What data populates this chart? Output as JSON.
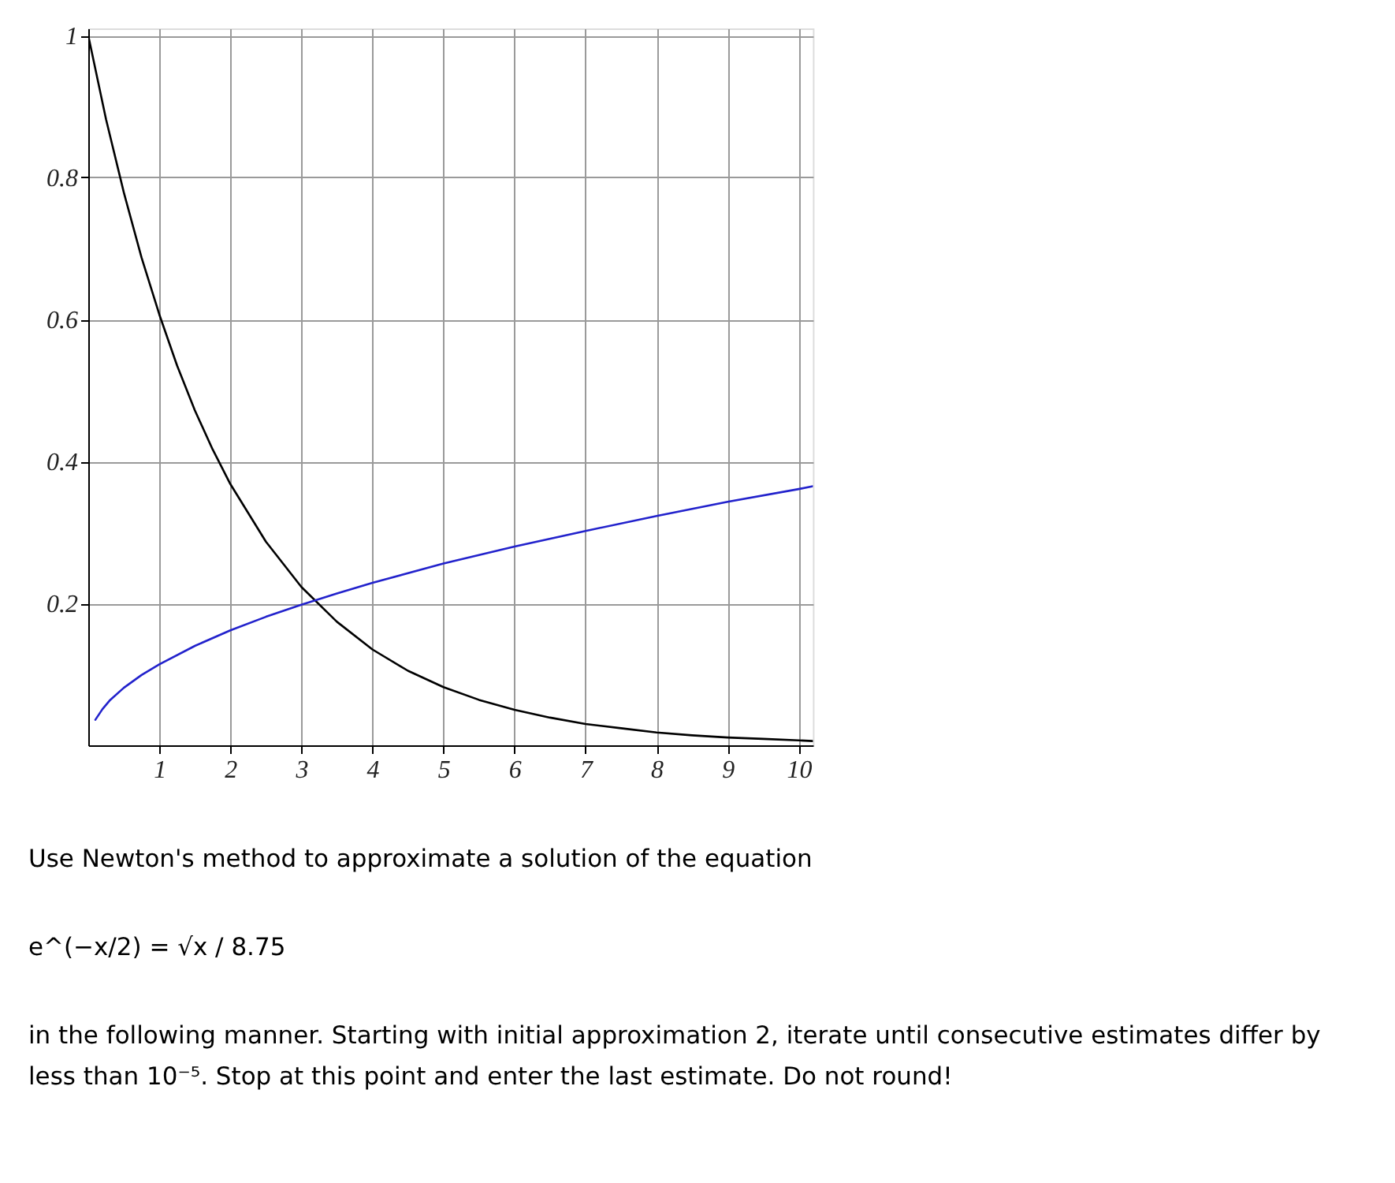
{
  "chart_data": {
    "type": "line",
    "xlim": [
      0,
      10.2
    ],
    "ylim": [
      0,
      1.01
    ],
    "xticks": [
      1,
      2,
      3,
      4,
      5,
      6,
      7,
      8,
      9,
      10
    ],
    "yticks": [
      0.2,
      0.4,
      0.6,
      0.8,
      1
    ],
    "grid": true,
    "line_style": "solid",
    "series": [
      {
        "color": "#000000",
        "x": [
          0,
          0.25,
          0.5,
          0.75,
          1,
          1.25,
          1.5,
          1.75,
          2,
          2.5,
          3,
          3.5,
          4,
          4.5,
          5,
          5.5,
          6,
          6.5,
          7,
          7.5,
          8,
          8.5,
          9,
          9.5,
          10,
          10.2
        ],
        "values": [
          1,
          0.882,
          0.779,
          0.687,
          0.607,
          0.535,
          0.472,
          0.417,
          0.368,
          0.287,
          0.223,
          0.174,
          0.135,
          0.105,
          0.082,
          0.064,
          0.05,
          0.039,
          0.03,
          0.024,
          0.018,
          0.014,
          0.011,
          0.009,
          0.007,
          0.006
        ]
      },
      {
        "color": "#2222cc",
        "x": [
          0.1,
          0.2,
          0.3,
          0.5,
          0.75,
          1,
          1.5,
          2,
          2.5,
          3,
          3.5,
          4,
          5,
          6,
          7,
          8,
          9,
          10,
          10.2
        ],
        "values": [
          0.036,
          0.051,
          0.063,
          0.081,
          0.099,
          0.114,
          0.14,
          0.162,
          0.181,
          0.198,
          0.214,
          0.229,
          0.256,
          0.28,
          0.302,
          0.323,
          0.343,
          0.361,
          0.365
        ]
      }
    ],
    "annotations": [
      "Use Newton's method to approximate a solution of the equation",
      "e^(−x/2) = √x / 8.75",
      "in the following manner. Starting with initial approximation 2, iterate until consecutive estimates differ by less than 10⁻⁵. Stop at this point and enter the last estimate. Do not round!"
    ]
  }
}
